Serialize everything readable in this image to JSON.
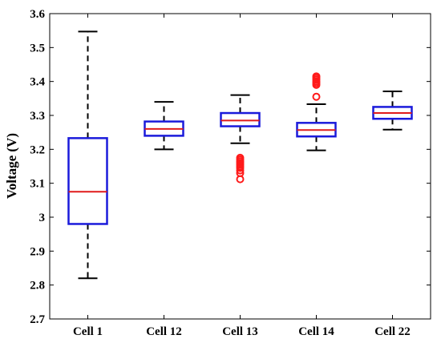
{
  "chart_data": {
    "type": "box",
    "title": "",
    "xlabel": "",
    "ylabel": "Voltage (V)",
    "ylim": [
      2.7,
      3.6
    ],
    "yticks": [
      2.7,
      2.8,
      2.9,
      3.0,
      3.1,
      3.2,
      3.3,
      3.4,
      3.5,
      3.6
    ],
    "ytick_labels": [
      "2.7",
      "2.8",
      "2.9",
      "3",
      "3.1",
      "3.2",
      "3.3",
      "3.4",
      "3.5",
      "3.6"
    ],
    "categories": [
      "Cell 1",
      "Cell 12",
      "Cell 13",
      "Cell 14",
      "Cell 22"
    ],
    "boxes": [
      {
        "name": "Cell 1",
        "whisker_low": 2.82,
        "q1": 2.98,
        "median": 3.075,
        "q3": 3.233,
        "whisker_high": 3.547,
        "outliers": []
      },
      {
        "name": "Cell 12",
        "whisker_low": 3.2,
        "q1": 3.24,
        "median": 3.26,
        "q3": 3.282,
        "whisker_high": 3.34,
        "outliers": []
      },
      {
        "name": "Cell 13",
        "whisker_low": 3.218,
        "q1": 3.268,
        "median": 3.285,
        "q3": 3.307,
        "whisker_high": 3.36,
        "outliers": [
          3.112,
          3.13,
          3.138,
          3.145,
          3.15,
          3.155,
          3.16,
          3.165,
          3.17,
          3.175
        ]
      },
      {
        "name": "Cell 14",
        "whisker_low": 3.197,
        "q1": 3.238,
        "median": 3.257,
        "q3": 3.278,
        "whisker_high": 3.333,
        "outliers": [
          3.355,
          3.39,
          3.395,
          3.4,
          3.405,
          3.41,
          3.415
        ]
      },
      {
        "name": "Cell 22",
        "whisker_low": 3.258,
        "q1": 3.29,
        "median": 3.307,
        "q3": 3.325,
        "whisker_high": 3.371,
        "outliers": []
      }
    ],
    "colors": {
      "box": "#1a1adb",
      "median": "#e01b1b",
      "whisker": "#000000",
      "outlier": "#ff1a1a"
    },
    "grid": false,
    "legend": "none"
  }
}
